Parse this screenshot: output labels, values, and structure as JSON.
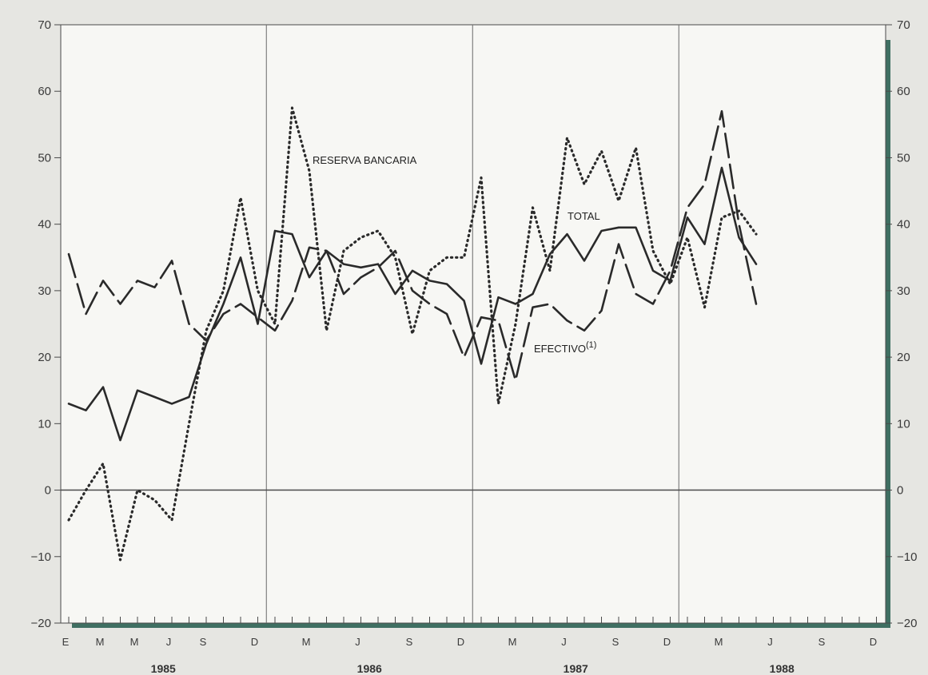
{
  "chart_data": {
    "type": "line",
    "title": "",
    "xlabel": "",
    "ylabel": "",
    "ylim": [
      -20,
      70
    ],
    "yticks": [
      -20,
      -10,
      0,
      10,
      20,
      30,
      40,
      50,
      60,
      70
    ],
    "grid": "vertical year dividers and zero line",
    "x_start": "1985-01",
    "x_end": "1988-12",
    "month_labels": [
      "E",
      "M",
      "M",
      "J",
      "S",
      "D",
      "M",
      "J",
      "S",
      "D",
      "M",
      "J",
      "S",
      "D",
      "M",
      "J",
      "S",
      "D"
    ],
    "years": [
      "1985",
      "1986",
      "1987",
      "1988"
    ],
    "annotations": {
      "reserva": "RESERVA BANCARIA",
      "total": "TOTAL",
      "efectivo": "EFECTIVO",
      "efectivo_sup": "(1)"
    },
    "series": [
      {
        "name": "RESERVA BANCARIA",
        "style": "dotted",
        "color": "#2a2a2a",
        "values": [
          -4.5,
          0,
          4,
          -10.5,
          0,
          -1.5,
          -4.5,
          10,
          24,
          30,
          44,
          30,
          25,
          57.5,
          48,
          24,
          36,
          38,
          39,
          35,
          23.5,
          33,
          35,
          35,
          47,
          13,
          25,
          42.5,
          33,
          53,
          46,
          51,
          43.5,
          51.5,
          36,
          31,
          38,
          27.5,
          41,
          42,
          38.5
        ]
      },
      {
        "name": "TOTAL",
        "style": "solid",
        "color": "#2a2a2a",
        "values": [
          13,
          12,
          15.5,
          7.5,
          15,
          14,
          13,
          14,
          22,
          28,
          35,
          25,
          39,
          38.5,
          32,
          36,
          34,
          33.5,
          34,
          29.5,
          33,
          31.5,
          31,
          28.5,
          19,
          29,
          28,
          29.5,
          35.5,
          38.5,
          34.5,
          39,
          39.5,
          39.5,
          33,
          31.5,
          41,
          37,
          48.5,
          38,
          34
        ]
      },
      {
        "name": "EFECTIVO",
        "style": "dashed",
        "color": "#2a2a2a",
        "values": [
          35.5,
          26.5,
          31.5,
          28,
          31.5,
          30.5,
          34.5,
          25,
          22.5,
          26.5,
          28,
          26,
          24,
          28.5,
          36.5,
          36,
          29.5,
          32,
          33.5,
          36,
          30,
          28,
          26.5,
          20,
          26,
          25.5,
          16.5,
          27.5,
          28,
          25.5,
          24,
          27,
          37,
          29.5,
          28,
          33,
          42.5,
          46,
          57,
          40,
          28
        ]
      }
    ]
  }
}
